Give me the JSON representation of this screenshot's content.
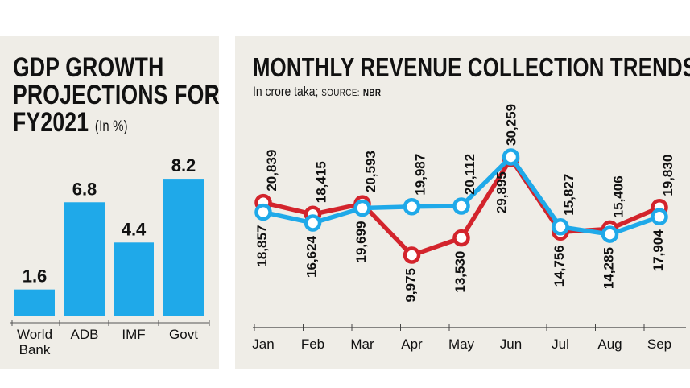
{
  "left_chart": {
    "title_line1": "GDP GROWTH",
    "title_line2": "PROJECTIONS FOR",
    "title_line3": "FY2021",
    "unit": "(In %)"
  },
  "right_chart": {
    "title": "MONTHLY REVENUE COLLECTION TRENDS",
    "subtitle": "In crore taka;",
    "source_label": "SOURCE:",
    "source": "NBR"
  },
  "colors": {
    "panel_bg": "#efede7",
    "bar_blue": "#1fa9e9",
    "line_red": "#d3242c",
    "line_blue": "#1fa9e9"
  },
  "chart_data": [
    {
      "type": "bar",
      "title": "GDP GROWTH PROJECTIONS FOR FY2021 (In %)",
      "categories": [
        "World Bank",
        "ADB",
        "IMF",
        "Govt"
      ],
      "category_lines": [
        [
          "World",
          "Bank"
        ],
        [
          "ADB"
        ],
        [
          "IMF"
        ],
        [
          "Govt"
        ]
      ],
      "values": [
        1.6,
        6.8,
        4.4,
        8.2
      ],
      "value_labels": [
        "1.6",
        "6.8",
        "4.4",
        "8.2"
      ],
      "ylim": [
        0,
        9.5
      ]
    },
    {
      "type": "line",
      "title": "MONTHLY REVENUE COLLECTION TRENDS",
      "subtitle": "In crore taka; SOURCE: NBR",
      "categories": [
        "Jan",
        "Feb",
        "Mar",
        "Apr",
        "May",
        "Jun",
        "Jul",
        "Aug",
        "Sep"
      ],
      "series": [
        {
          "color": "#d3242c",
          "values": [
            20839,
            18415,
            20593,
            9975,
            13530,
            29895,
            14756,
            15406,
            19830
          ],
          "labels": [
            "20,839",
            "18,415",
            "20,593",
            "9,975",
            "13,530",
            "29,895",
            "14,756",
            "15,406",
            "19,830"
          ]
        },
        {
          "color": "#1fa9e9",
          "values": [
            18857,
            16624,
            19699,
            19987,
            20112,
            30259,
            15827,
            14285,
            17904
          ],
          "labels": [
            "18,857",
            "16,624",
            "19,699",
            "19,987",
            "20,112",
            "30,259",
            "15,827",
            "14,285",
            "17,904"
          ]
        }
      ],
      "ylim": [
        5000,
        35000
      ]
    }
  ]
}
